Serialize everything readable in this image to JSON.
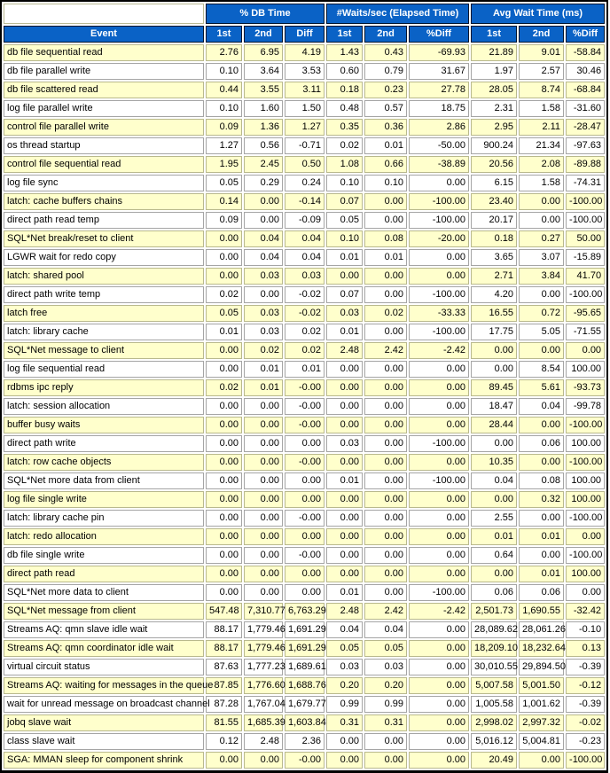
{
  "colors": {
    "header_blue": "#0a62c6",
    "header_text": "#ffffff",
    "row_alt_yellow": "#ffffcc",
    "row_white": "#ffffff",
    "outer_border": "#000000"
  },
  "table": {
    "group_headers": {
      "db_time": "% DB Time",
      "waits_sec": "#Waits/sec (Elapsed Time)",
      "avg_wait": "Avg Wait Time (ms)"
    },
    "col_headers": [
      "Event",
      "1st",
      "2nd",
      "Diff",
      "1st",
      "2nd",
      "%Diff",
      "1st",
      "2nd",
      "%Diff"
    ],
    "rows": [
      [
        "db file sequential read",
        "2.76",
        "6.95",
        "4.19",
        "1.43",
        "0.43",
        "-69.93",
        "21.89",
        "9.01",
        "-58.84"
      ],
      [
        "db file parallel write",
        "0.10",
        "3.64",
        "3.53",
        "0.60",
        "0.79",
        "31.67",
        "1.97",
        "2.57",
        "30.46"
      ],
      [
        "db file scattered read",
        "0.44",
        "3.55",
        "3.11",
        "0.18",
        "0.23",
        "27.78",
        "28.05",
        "8.74",
        "-68.84"
      ],
      [
        "log file parallel write",
        "0.10",
        "1.60",
        "1.50",
        "0.48",
        "0.57",
        "18.75",
        "2.31",
        "1.58",
        "-31.60"
      ],
      [
        "control file parallel write",
        "0.09",
        "1.36",
        "1.27",
        "0.35",
        "0.36",
        "2.86",
        "2.95",
        "2.11",
        "-28.47"
      ],
      [
        "os thread startup",
        "1.27",
        "0.56",
        "-0.71",
        "0.02",
        "0.01",
        "-50.00",
        "900.24",
        "21.34",
        "-97.63"
      ],
      [
        "control file sequential read",
        "1.95",
        "2.45",
        "0.50",
        "1.08",
        "0.66",
        "-38.89",
        "20.56",
        "2.08",
        "-89.88"
      ],
      [
        "log file sync",
        "0.05",
        "0.29",
        "0.24",
        "0.10",
        "0.10",
        "0.00",
        "6.15",
        "1.58",
        "-74.31"
      ],
      [
        "latch: cache buffers chains",
        "0.14",
        "0.00",
        "-0.14",
        "0.07",
        "0.00",
        "-100.00",
        "23.40",
        "0.00",
        "-100.00"
      ],
      [
        "direct path read temp",
        "0.09",
        "0.00",
        "-0.09",
        "0.05",
        "0.00",
        "-100.00",
        "20.17",
        "0.00",
        "-100.00"
      ],
      [
        "SQL*Net break/reset to client",
        "0.00",
        "0.04",
        "0.04",
        "0.10",
        "0.08",
        "-20.00",
        "0.18",
        "0.27",
        "50.00"
      ],
      [
        "LGWR wait for redo copy",
        "0.00",
        "0.04",
        "0.04",
        "0.01",
        "0.01",
        "0.00",
        "3.65",
        "3.07",
        "-15.89"
      ],
      [
        "latch: shared pool",
        "0.00",
        "0.03",
        "0.03",
        "0.00",
        "0.00",
        "0.00",
        "2.71",
        "3.84",
        "41.70"
      ],
      [
        "direct path write temp",
        "0.02",
        "0.00",
        "-0.02",
        "0.07",
        "0.00",
        "-100.00",
        "4.20",
        "0.00",
        "-100.00"
      ],
      [
        "latch free",
        "0.05",
        "0.03",
        "-0.02",
        "0.03",
        "0.02",
        "-33.33",
        "16.55",
        "0.72",
        "-95.65"
      ],
      [
        "latch: library cache",
        "0.01",
        "0.03",
        "0.02",
        "0.01",
        "0.00",
        "-100.00",
        "17.75",
        "5.05",
        "-71.55"
      ],
      [
        "SQL*Net message to client",
        "0.00",
        "0.02",
        "0.02",
        "2.48",
        "2.42",
        "-2.42",
        "0.00",
        "0.00",
        "0.00"
      ],
      [
        "log file sequential read",
        "0.00",
        "0.01",
        "0.01",
        "0.00",
        "0.00",
        "0.00",
        "0.00",
        "8.54",
        "100.00"
      ],
      [
        "rdbms ipc reply",
        "0.02",
        "0.01",
        "-0.00",
        "0.00",
        "0.00",
        "0.00",
        "89.45",
        "5.61",
        "-93.73"
      ],
      [
        "latch: session allocation",
        "0.00",
        "0.00",
        "-0.00",
        "0.00",
        "0.00",
        "0.00",
        "18.47",
        "0.04",
        "-99.78"
      ],
      [
        "buffer busy waits",
        "0.00",
        "0.00",
        "-0.00",
        "0.00",
        "0.00",
        "0.00",
        "28.44",
        "0.00",
        "-100.00"
      ],
      [
        "direct path write",
        "0.00",
        "0.00",
        "0.00",
        "0.03",
        "0.00",
        "-100.00",
        "0.00",
        "0.06",
        "100.00"
      ],
      [
        "latch: row cache objects",
        "0.00",
        "0.00",
        "-0.00",
        "0.00",
        "0.00",
        "0.00",
        "10.35",
        "0.00",
        "-100.00"
      ],
      [
        "SQL*Net more data from client",
        "0.00",
        "0.00",
        "0.00",
        "0.01",
        "0.00",
        "-100.00",
        "0.04",
        "0.08",
        "100.00"
      ],
      [
        "log file single write",
        "0.00",
        "0.00",
        "0.00",
        "0.00",
        "0.00",
        "0.00",
        "0.00",
        "0.32",
        "100.00"
      ],
      [
        "latch: library cache pin",
        "0.00",
        "0.00",
        "-0.00",
        "0.00",
        "0.00",
        "0.00",
        "2.55",
        "0.00",
        "-100.00"
      ],
      [
        "latch: redo allocation",
        "0.00",
        "0.00",
        "0.00",
        "0.00",
        "0.00",
        "0.00",
        "0.01",
        "0.01",
        "0.00"
      ],
      [
        "db file single write",
        "0.00",
        "0.00",
        "-0.00",
        "0.00",
        "0.00",
        "0.00",
        "0.64",
        "0.00",
        "-100.00"
      ],
      [
        "direct path read",
        "0.00",
        "0.00",
        "0.00",
        "0.00",
        "0.00",
        "0.00",
        "0.00",
        "0.01",
        "100.00"
      ],
      [
        "SQL*Net more data to client",
        "0.00",
        "0.00",
        "0.00",
        "0.01",
        "0.00",
        "-100.00",
        "0.06",
        "0.06",
        "0.00"
      ],
      [
        "SQL*Net message from client",
        "547.48",
        "7,310.77",
        "6,763.29",
        "2.48",
        "2.42",
        "-2.42",
        "2,501.73",
        "1,690.55",
        "-32.42"
      ],
      [
        "Streams AQ: qmn slave idle wait",
        "88.17",
        "1,779.46",
        "1,691.29",
        "0.04",
        "0.04",
        "0.00",
        "28,089.62",
        "28,061.26",
        "-0.10"
      ],
      [
        "Streams AQ: qmn coordinator idle wait",
        "88.17",
        "1,779.46",
        "1,691.29",
        "0.05",
        "0.05",
        "0.00",
        "18,209.10",
        "18,232.64",
        "0.13"
      ],
      [
        "virtual circuit status",
        "87.63",
        "1,777.23",
        "1,689.61",
        "0.03",
        "0.03",
        "0.00",
        "30,010.55",
        "29,894.50",
        "-0.39"
      ],
      [
        "Streams AQ: waiting for messages in the queue",
        "87.85",
        "1,776.60",
        "1,688.76",
        "0.20",
        "0.20",
        "0.00",
        "5,007.58",
        "5,001.50",
        "-0.12"
      ],
      [
        "wait for unread message on broadcast channel",
        "87.28",
        "1,767.04",
        "1,679.77",
        "0.99",
        "0.99",
        "0.00",
        "1,005.58",
        "1,001.62",
        "-0.39"
      ],
      [
        "jobq slave wait",
        "81.55",
        "1,685.39",
        "1,603.84",
        "0.31",
        "0.31",
        "0.00",
        "2,998.02",
        "2,997.32",
        "-0.02"
      ],
      [
        "class slave wait",
        "0.12",
        "2.48",
        "2.36",
        "0.00",
        "0.00",
        "0.00",
        "5,016.12",
        "5,004.81",
        "-0.23"
      ],
      [
        "SGA: MMAN sleep for component shrink",
        "0.00",
        "0.00",
        "-0.00",
        "0.00",
        "0.00",
        "0.00",
        "20.49",
        "0.00",
        "-100.00"
      ]
    ]
  }
}
